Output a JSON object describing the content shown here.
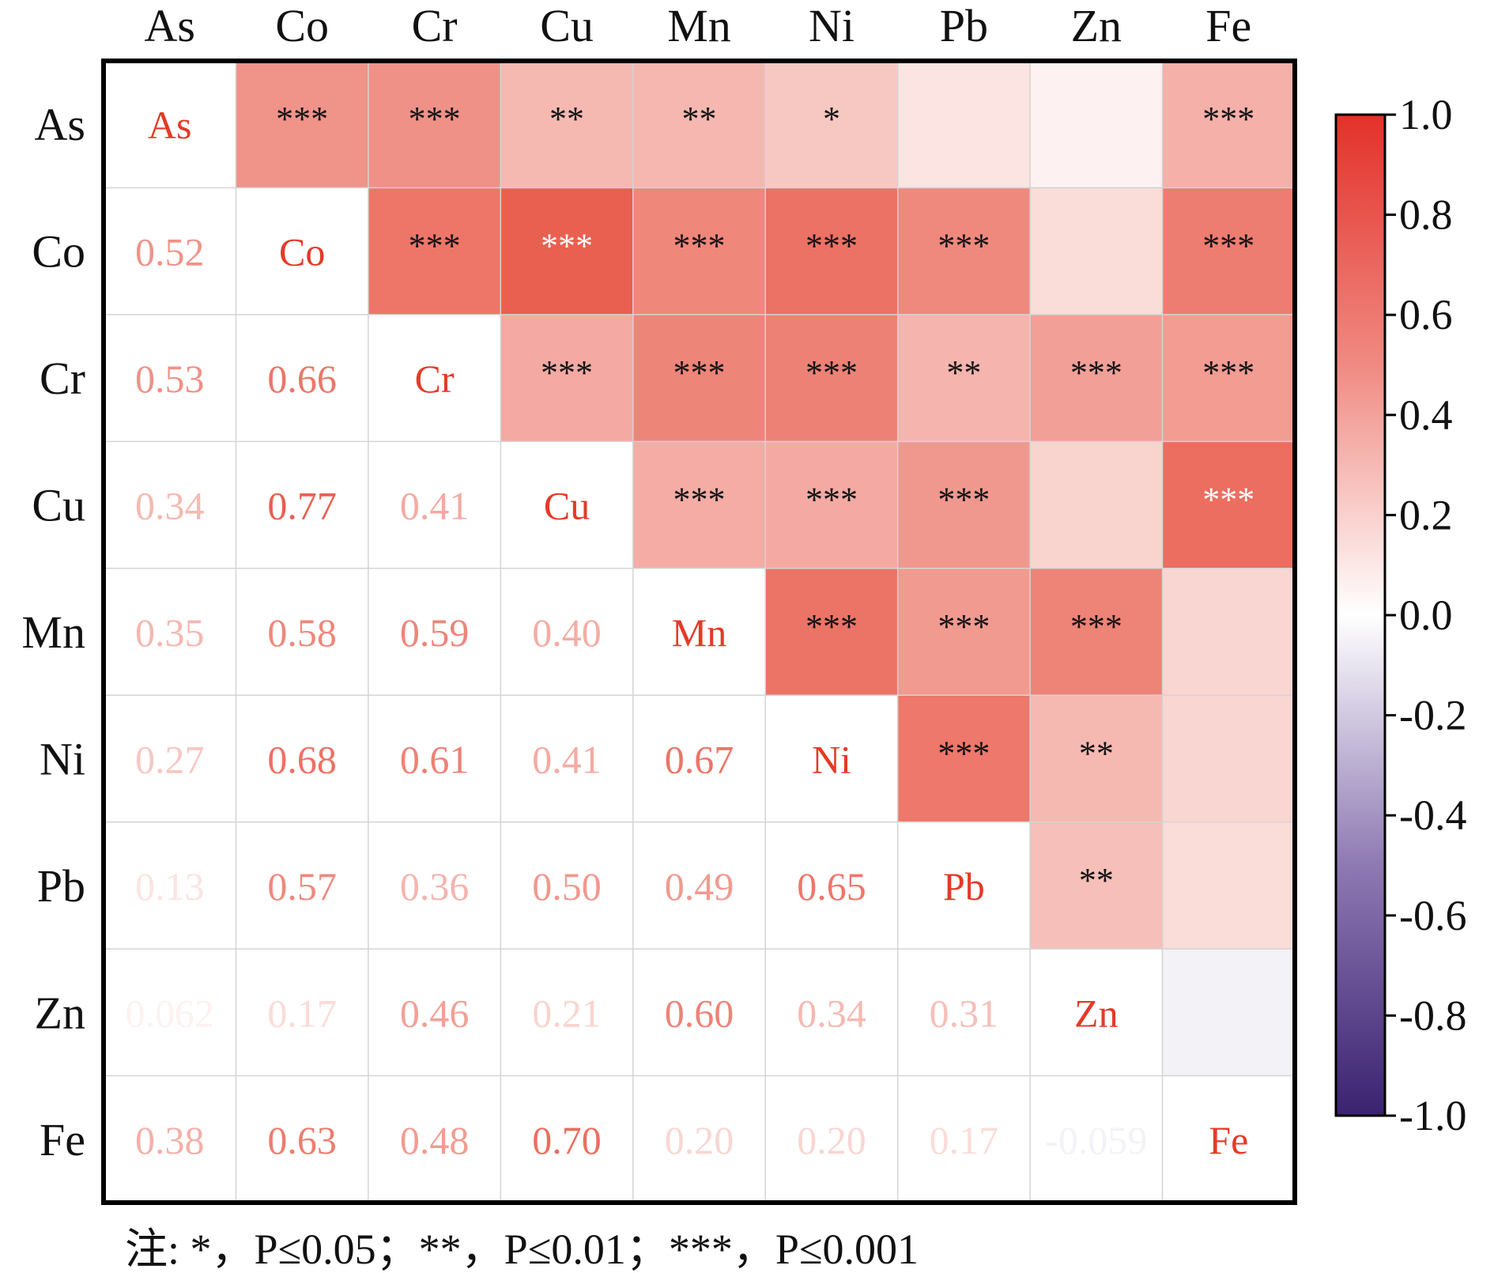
{
  "chart_data": {
    "type": "heatmap",
    "variables": [
      "As",
      "Co",
      "Cr",
      "Cu",
      "Mn",
      "Ni",
      "Pb",
      "Zn",
      "Fe"
    ],
    "matrix": [
      [
        1.0,
        0.52,
        0.53,
        0.34,
        0.35,
        0.27,
        0.13,
        0.062,
        0.38
      ],
      [
        0.52,
        1.0,
        0.66,
        0.77,
        0.58,
        0.68,
        0.57,
        0.17,
        0.63
      ],
      [
        0.53,
        0.66,
        1.0,
        0.41,
        0.59,
        0.61,
        0.36,
        0.46,
        0.48
      ],
      [
        0.34,
        0.77,
        0.41,
        1.0,
        0.4,
        0.41,
        0.5,
        0.21,
        0.7
      ],
      [
        0.35,
        0.58,
        0.59,
        0.4,
        1.0,
        0.67,
        0.49,
        0.6,
        0.2
      ],
      [
        0.27,
        0.68,
        0.61,
        0.41,
        0.67,
        1.0,
        0.65,
        0.34,
        0.2
      ],
      [
        0.13,
        0.57,
        0.36,
        0.5,
        0.49,
        0.65,
        1.0,
        0.31,
        0.17
      ],
      [
        0.062,
        0.17,
        0.46,
        0.21,
        0.6,
        0.34,
        0.31,
        1.0,
        -0.059
      ],
      [
        0.38,
        0.63,
        0.48,
        0.7,
        0.2,
        0.2,
        0.17,
        -0.059,
        1.0
      ]
    ],
    "lower_labels": [
      [
        "As",
        "",
        "",
        "",
        "",
        "",
        "",
        "",
        ""
      ],
      [
        "0.52",
        "Co",
        "",
        "",
        "",
        "",
        "",
        "",
        ""
      ],
      [
        "0.53",
        "0.66",
        "Cr",
        "",
        "",
        "",
        "",
        "",
        ""
      ],
      [
        "0.34",
        "0.77",
        "0.41",
        "Cu",
        "",
        "",
        "",
        "",
        ""
      ],
      [
        "0.35",
        "0.58",
        "0.59",
        "0.40",
        "Mn",
        "",
        "",
        "",
        ""
      ],
      [
        "0.27",
        "0.68",
        "0.61",
        "0.41",
        "0.67",
        "Ni",
        "",
        "",
        ""
      ],
      [
        "0.13",
        "0.57",
        "0.36",
        "0.50",
        "0.49",
        "0.65",
        "Pb",
        "",
        ""
      ],
      [
        "0.062",
        "0.17",
        "0.46",
        "0.21",
        "0.60",
        "0.34",
        "0.31",
        "Zn",
        ""
      ],
      [
        "0.38",
        "0.63",
        "0.48",
        "0.70",
        "0.20",
        "0.20",
        "0.17",
        "-0.059",
        "Fe"
      ]
    ],
    "significance": [
      [
        "",
        "***",
        "***",
        "**",
        "**",
        "*",
        "",
        "",
        "***"
      ],
      [
        "",
        "",
        "***",
        "***",
        "***",
        "***",
        "***",
        "",
        "***"
      ],
      [
        "",
        "",
        "",
        "***",
        "***",
        "***",
        "**",
        "***",
        "***"
      ],
      [
        "",
        "",
        "",
        "",
        "***",
        "***",
        "***",
        "",
        "***"
      ],
      [
        "",
        "",
        "",
        "",
        "",
        "***",
        "***",
        "***",
        ""
      ],
      [
        "",
        "",
        "",
        "",
        "",
        "",
        "***",
        "**",
        ""
      ],
      [
        "",
        "",
        "",
        "",
        "",
        "",
        "",
        "**",
        ""
      ],
      [
        "",
        "",
        "",
        "",
        "",
        "",
        "",
        "",
        ""
      ],
      [
        "",
        "",
        "",
        "",
        "",
        "",
        "",
        "",
        ""
      ]
    ],
    "colorbar": {
      "range": [
        -1.0,
        1.0
      ],
      "ticks": [
        "1.0",
        "0.8",
        "0.6",
        "0.4",
        "0.2",
        "0.0",
        "-0.2",
        "-0.4",
        "-0.6",
        "-0.8",
        "-1.0"
      ],
      "tick_values": [
        1.0,
        0.8,
        0.6,
        0.4,
        0.2,
        0.0,
        -0.2,
        -0.4,
        -0.6,
        -0.8,
        -1.0
      ],
      "colors": {
        "positive": "#e3312a",
        "zero": "#ffffff",
        "negative": "#3a2270"
      }
    },
    "note": "注: *，P≤0.05；**，P≤0.01；***，P≤0.001"
  }
}
